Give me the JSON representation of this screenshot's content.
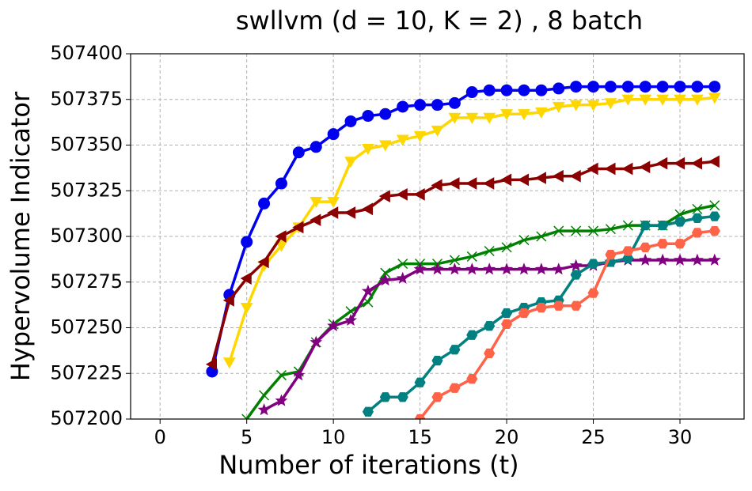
{
  "chart_data": {
    "type": "line",
    "title": "swllvm (d = 10, K = 2) , 8 batch",
    "xlabel": "Number of iterations (t)",
    "ylabel": "Hypervolume Indicator",
    "x": [
      1,
      2,
      3,
      4,
      5,
      6,
      7,
      8,
      9,
      10,
      11,
      12,
      13,
      14,
      15,
      16,
      17,
      18,
      19,
      20,
      21,
      22,
      23,
      24,
      25,
      26,
      27,
      28,
      29,
      30,
      31,
      32
    ],
    "series": [
      {
        "color": "#0000ee",
        "marker": "circle",
        "values": [
          null,
          null,
          507226,
          507268,
          507297,
          507318,
          507329,
          507346,
          507349,
          507356,
          507363,
          507366,
          507367,
          507371,
          507372,
          507372,
          507373,
          507379,
          507380,
          507380,
          507380,
          507380,
          507381,
          507382,
          507382,
          507382,
          507382,
          507382,
          507382,
          507382,
          507382,
          507382
        ]
      },
      {
        "color": "#ffd700",
        "marker": "triangle-down",
        "values": [
          null,
          null,
          null,
          507231,
          507261,
          507284,
          507295,
          507305,
          507319,
          507319,
          507341,
          507348,
          507350,
          507353,
          507355,
          507358,
          507365,
          507365,
          507365,
          507367,
          507367,
          507368,
          507371,
          507372,
          507372,
          507373,
          507375,
          507375,
          507375,
          507375,
          507375,
          507376
        ]
      },
      {
        "color": "#8b0000",
        "marker": "triangle-left",
        "values": [
          null,
          null,
          507230,
          507265,
          507277,
          507286,
          507300,
          507305,
          507309,
          507313,
          507313,
          507315,
          507322,
          507323,
          507323,
          507328,
          507329,
          507329,
          507329,
          507331,
          507331,
          507332,
          507333,
          507333,
          507337,
          507337,
          507337,
          507338,
          507340,
          507340,
          507340,
          507341
        ]
      },
      {
        "color": "#008000",
        "marker": "x",
        "values": [
          null,
          null,
          null,
          null,
          507200,
          507213,
          507224,
          507226,
          507242,
          507252,
          507259,
          507264,
          507280,
          507285,
          507285,
          507285,
          507287,
          507289,
          507292,
          507294,
          507298,
          507300,
          507303,
          507303,
          507303,
          507304,
          507306,
          507306,
          507306,
          507312,
          507315,
          507317
        ]
      },
      {
        "color": "#800080",
        "marker": "star",
        "values": [
          null,
          null,
          null,
          null,
          null,
          507205,
          507210,
          507224,
          507242,
          507251,
          507254,
          507270,
          507276,
          507277,
          507282,
          507282,
          507282,
          507282,
          507282,
          507282,
          507282,
          507282,
          507282,
          507284,
          507284,
          507286,
          507287,
          507287,
          507287,
          507287,
          507287,
          507287
        ]
      },
      {
        "color": "#008080",
        "marker": "hexagon",
        "values": [
          null,
          null,
          null,
          null,
          null,
          null,
          null,
          null,
          null,
          null,
          null,
          507204,
          507212,
          507212,
          507220,
          507232,
          507238,
          507246,
          507251,
          507258,
          507261,
          507264,
          507265,
          507279,
          507285,
          507286,
          507288,
          507306,
          507306,
          507308,
          507310,
          507311
        ]
      },
      {
        "color": "#ff6347",
        "marker": "hexagon",
        "values": [
          null,
          null,
          null,
          null,
          null,
          null,
          null,
          null,
          null,
          null,
          null,
          null,
          null,
          null,
          507200,
          507212,
          507217,
          507222,
          507236,
          507252,
          507258,
          507261,
          507262,
          507262,
          507269,
          507290,
          507292,
          507294,
          507296,
          507296,
          507302,
          507303
        ]
      }
    ],
    "xlim": [
      -1.7,
      33.7
    ],
    "xticks": [
      0,
      5,
      10,
      15,
      20,
      25,
      30
    ],
    "ylim": [
      507200,
      507400
    ],
    "yticks": [
      507200,
      507225,
      507250,
      507275,
      507300,
      507325,
      507350,
      507375,
      507400
    ],
    "grid": true
  }
}
